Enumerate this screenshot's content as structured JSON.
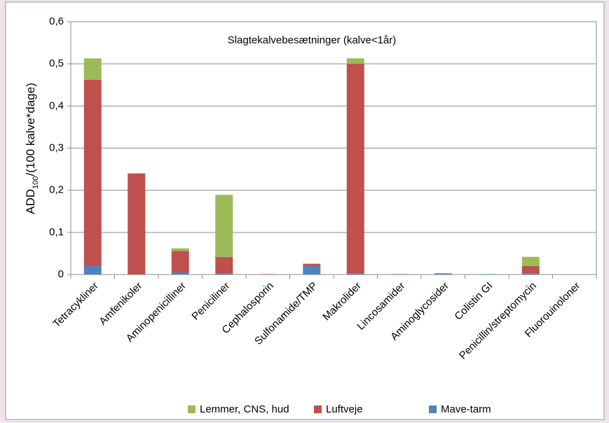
{
  "chart_data": {
    "type": "stacked_bar",
    "title": "Slagtekalvebesætninger (kalve<1år)",
    "y_label": {
      "main": "ADD",
      "sub": "100",
      "rest": "/(100 kalve*dage)"
    },
    "categories": [
      "Tetracykliner",
      "Amfenikoler",
      "Aminopenicilliner",
      "Peniciliner",
      "Cephalosporin",
      "Sulfonamide/TMP",
      "Makrolider",
      "Lincosamider",
      "Aminoglycosider",
      "Colistin GI",
      "Penicillin/streptomycin",
      "Fluorouinoloner"
    ],
    "series": [
      {
        "name": "Lemmer, CNS, hud",
        "color": "#9bbb59",
        "values": [
          0.051,
          0,
          0.006,
          0.147,
          0,
          0.001,
          0.013,
          0,
          0,
          0,
          0.022,
          0
        ]
      },
      {
        "name": "Luftveje",
        "color": "#c0504d",
        "values": [
          0.442,
          0.24,
          0.051,
          0.04,
          0.001,
          0.005,
          0.498,
          0.001,
          0.001,
          0,
          0.018,
          0
        ]
      },
      {
        "name": "Mave-tarm",
        "color": "#4f81bd",
        "values": [
          0.02,
          0,
          0.005,
          0.002,
          0,
          0.02,
          0.002,
          0,
          0.002,
          0.001,
          0.002,
          0
        ]
      }
    ],
    "ylim": [
      0,
      0.6
    ],
    "yticks": [
      0,
      {
        "value": 0.1,
        "label": "0,1"
      },
      {
        "value": 0.2,
        "label": "0,2"
      },
      {
        "value": 0.3,
        "label": "0,3"
      },
      {
        "value": 0.4,
        "label": "0,4"
      },
      {
        "value": 0.5,
        "label": "0,5"
      },
      {
        "value": 0.6,
        "label": "0,6"
      }
    ],
    "grid": true
  }
}
